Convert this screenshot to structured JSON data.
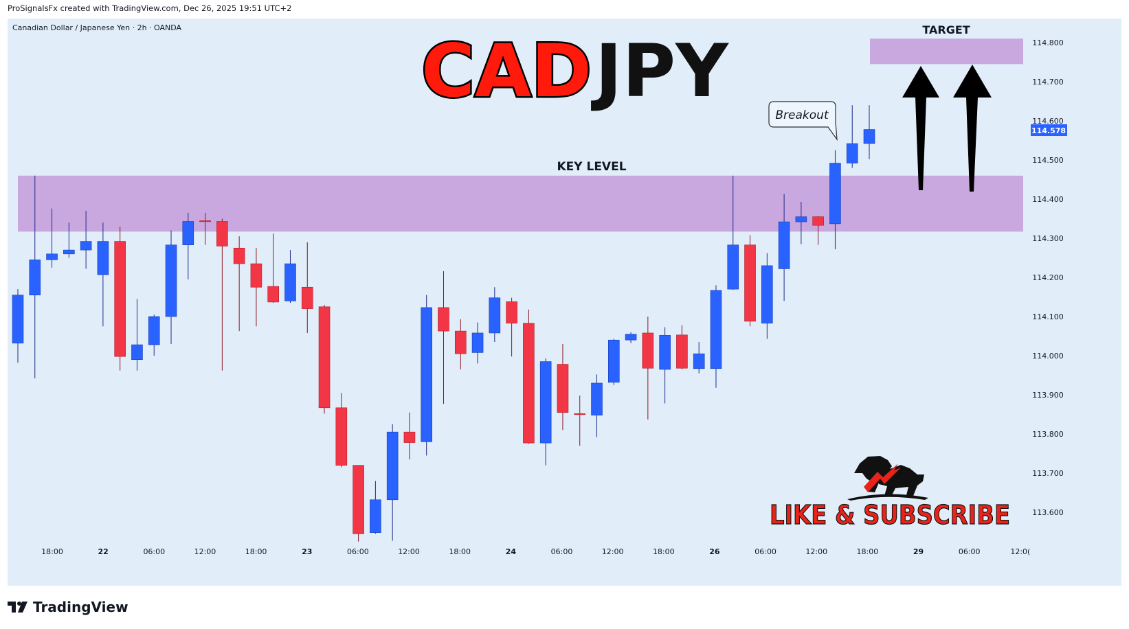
{
  "header": {
    "credit": "ProSignalsFx created with TradingView.com, Dec 26, 2025 19:51 UTC+2"
  },
  "symbol_label": "Canadian Dollar / Japanese Yen · 2h · OANDA",
  "title": {
    "part1": "CAD",
    "part2": "JPY"
  },
  "annotations": {
    "target": "TARGET",
    "key_level": "KEY LEVEL",
    "breakout": "Breakout",
    "like_subscribe": "LIKE & SUBSCRIBE"
  },
  "price_tag": "114.578",
  "footer": {
    "brand": "TradingView"
  },
  "colors": {
    "up": "#2962ff",
    "down": "#f23645",
    "zone": "#c9a8e0",
    "panel": "#e1eef9",
    "title_red": "#ff1a0c",
    "price_tag": "#2962ff"
  },
  "chart_data": {
    "type": "candlestick",
    "ylim": [
      113.52,
      114.83
    ],
    "y_ticks": [
      "114.800",
      "114.700",
      "114.600",
      "114.500",
      "114.400",
      "114.300",
      "114.200",
      "114.100",
      "114.000",
      "113.900",
      "113.800",
      "113.700",
      "113.600"
    ],
    "x_ticks": [
      "18:00",
      "22",
      "06:00",
      "12:00",
      "18:00",
      "23",
      "06:00",
      "12:00",
      "18:00",
      "24",
      "06:00",
      "12:00",
      "18:00",
      "26",
      "06:00",
      "12:00",
      "18:00",
      "29",
      "06:00",
      "12:0("
    ],
    "zones": [
      {
        "name": "key-level",
        "from": 114.317,
        "to": 114.46
      },
      {
        "name": "target",
        "from": 114.745,
        "to": 114.81
      }
    ],
    "candles": [
      {
        "o": 114.032,
        "h": 114.17,
        "l": 113.982,
        "c": 114.155
      },
      {
        "o": 114.155,
        "h": 114.46,
        "l": 113.942,
        "c": 114.245
      },
      {
        "o": 114.245,
        "h": 114.376,
        "l": 114.225,
        "c": 114.26
      },
      {
        "o": 114.26,
        "h": 114.34,
        "l": 114.25,
        "c": 114.27
      },
      {
        "o": 114.27,
        "h": 114.37,
        "l": 114.222,
        "c": 114.292
      },
      {
        "o": 114.207,
        "h": 114.34,
        "l": 114.075,
        "c": 114.292
      },
      {
        "o": 114.292,
        "h": 114.33,
        "l": 113.962,
        "c": 113.998
      },
      {
        "o": 113.99,
        "h": 114.145,
        "l": 113.962,
        "c": 114.028
      },
      {
        "o": 114.028,
        "h": 114.105,
        "l": 114.0,
        "c": 114.1
      },
      {
        "o": 114.1,
        "h": 114.32,
        "l": 114.03,
        "c": 114.283
      },
      {
        "o": 114.283,
        "h": 114.365,
        "l": 114.195,
        "c": 114.343
      },
      {
        "o": 114.345,
        "h": 114.365,
        "l": 114.283,
        "c": 114.343
      },
      {
        "o": 114.343,
        "h": 114.35,
        "l": 113.962,
        "c": 114.28
      },
      {
        "o": 114.275,
        "h": 114.305,
        "l": 114.063,
        "c": 114.235
      },
      {
        "o": 114.235,
        "h": 114.275,
        "l": 114.075,
        "c": 114.175
      },
      {
        "o": 114.177,
        "h": 114.312,
        "l": 114.135,
        "c": 114.137
      },
      {
        "o": 114.14,
        "h": 114.27,
        "l": 114.135,
        "c": 114.235
      },
      {
        "o": 114.175,
        "h": 114.29,
        "l": 114.058,
        "c": 114.12
      },
      {
        "o": 114.125,
        "h": 114.13,
        "l": 113.852,
        "c": 113.867
      },
      {
        "o": 113.867,
        "h": 113.905,
        "l": 113.715,
        "c": 113.72
      },
      {
        "o": 113.72,
        "h": 113.72,
        "l": 113.525,
        "c": 113.545
      },
      {
        "o": 113.548,
        "h": 113.68,
        "l": 113.545,
        "c": 113.632
      },
      {
        "o": 113.632,
        "h": 113.825,
        "l": 113.527,
        "c": 113.805
      },
      {
        "o": 113.805,
        "h": 113.855,
        "l": 113.735,
        "c": 113.778
      },
      {
        "o": 113.78,
        "h": 114.155,
        "l": 113.745,
        "c": 114.123
      },
      {
        "o": 114.123,
        "h": 114.216,
        "l": 113.877,
        "c": 114.063
      },
      {
        "o": 114.063,
        "h": 114.093,
        "l": 113.965,
        "c": 114.005
      },
      {
        "o": 114.008,
        "h": 114.085,
        "l": 113.98,
        "c": 114.058
      },
      {
        "o": 114.058,
        "h": 114.175,
        "l": 114.035,
        "c": 114.148
      },
      {
        "o": 114.138,
        "h": 114.148,
        "l": 113.998,
        "c": 114.083
      },
      {
        "o": 114.083,
        "h": 114.118,
        "l": 113.775,
        "c": 113.777
      },
      {
        "o": 113.777,
        "h": 113.993,
        "l": 113.72,
        "c": 113.985
      },
      {
        "o": 113.978,
        "h": 114.03,
        "l": 113.81,
        "c": 113.855
      },
      {
        "o": 113.852,
        "h": 113.898,
        "l": 113.77,
        "c": 113.85
      },
      {
        "o": 113.848,
        "h": 113.952,
        "l": 113.792,
        "c": 113.93
      },
      {
        "o": 113.932,
        "h": 114.043,
        "l": 113.925,
        "c": 114.04
      },
      {
        "o": 114.04,
        "h": 114.06,
        "l": 114.032,
        "c": 114.055
      },
      {
        "o": 114.058,
        "h": 114.1,
        "l": 113.837,
        "c": 113.968
      },
      {
        "o": 113.965,
        "h": 114.073,
        "l": 113.878,
        "c": 114.052
      },
      {
        "o": 114.053,
        "h": 114.078,
        "l": 113.965,
        "c": 113.968
      },
      {
        "o": 113.967,
        "h": 114.035,
        "l": 113.955,
        "c": 114.005
      },
      {
        "o": 113.967,
        "h": 114.18,
        "l": 113.918,
        "c": 114.167
      },
      {
        "o": 114.17,
        "h": 114.46,
        "l": 114.168,
        "c": 114.283
      },
      {
        "o": 114.283,
        "h": 114.308,
        "l": 114.075,
        "c": 114.088
      },
      {
        "o": 114.083,
        "h": 114.262,
        "l": 114.043,
        "c": 114.23
      },
      {
        "o": 114.222,
        "h": 114.413,
        "l": 114.14,
        "c": 114.342
      },
      {
        "o": 114.342,
        "h": 114.393,
        "l": 114.285,
        "c": 114.355
      },
      {
        "o": 114.355,
        "h": 114.357,
        "l": 114.283,
        "c": 114.333
      },
      {
        "o": 114.337,
        "h": 114.525,
        "l": 114.272,
        "c": 114.492
      },
      {
        "o": 114.492,
        "h": 114.64,
        "l": 114.48,
        "c": 114.542
      },
      {
        "o": 114.542,
        "h": 114.64,
        "l": 114.502,
        "c": 114.578
      }
    ]
  }
}
